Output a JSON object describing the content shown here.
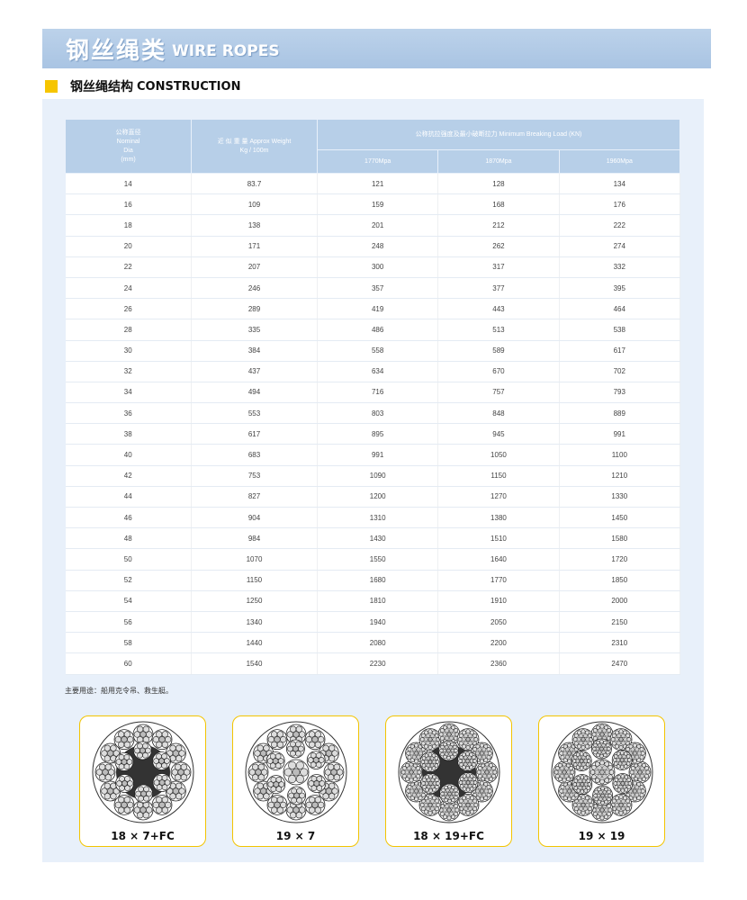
{
  "title": {
    "cn": "钢丝绳类",
    "en": "WIRE ROPES"
  },
  "section": {
    "cn": "钢丝绳结构",
    "en": "CONSTRUCTION"
  },
  "colors": {
    "header": "#b7cfe8",
    "panel": "#e8f0fa",
    "accent": "#f6c500"
  },
  "table": {
    "h_dia": [
      "公称直径",
      "Nominal",
      "Dia",
      "(mm)"
    ],
    "h_weight": [
      "近 似 重 量 Approx Weight",
      "Kg / 100m"
    ],
    "h_load": "公称抗拉强度及最小破断拉力 Minimum Breaking Load (KN)",
    "h_grades": [
      "1770Mpa",
      "1870Mpa",
      "1960Mpa"
    ],
    "rows": [
      [
        "14",
        "83.7",
        "121",
        "128",
        "134"
      ],
      [
        "16",
        "109",
        "159",
        "168",
        "176"
      ],
      [
        "18",
        "138",
        "201",
        "212",
        "222"
      ],
      [
        "20",
        "171",
        "248",
        "262",
        "274"
      ],
      [
        "22",
        "207",
        "300",
        "317",
        "332"
      ],
      [
        "24",
        "246",
        "357",
        "377",
        "395"
      ],
      [
        "26",
        "289",
        "419",
        "443",
        "464"
      ],
      [
        "28",
        "335",
        "486",
        "513",
        "538"
      ],
      [
        "30",
        "384",
        "558",
        "589",
        "617"
      ],
      [
        "32",
        "437",
        "634",
        "670",
        "702"
      ],
      [
        "34",
        "494",
        "716",
        "757",
        "793"
      ],
      [
        "36",
        "553",
        "803",
        "848",
        "889"
      ],
      [
        "38",
        "617",
        "895",
        "945",
        "991"
      ],
      [
        "40",
        "683",
        "991",
        "1050",
        "1100"
      ],
      [
        "42",
        "753",
        "1090",
        "1150",
        "1210"
      ],
      [
        "44",
        "827",
        "1200",
        "1270",
        "1330"
      ],
      [
        "46",
        "904",
        "1310",
        "1380",
        "1450"
      ],
      [
        "48",
        "984",
        "1430",
        "1510",
        "1580"
      ],
      [
        "50",
        "1070",
        "1550",
        "1640",
        "1720"
      ],
      [
        "52",
        "1150",
        "1680",
        "1770",
        "1850"
      ],
      [
        "54",
        "1250",
        "1810",
        "1910",
        "2000"
      ],
      [
        "56",
        "1340",
        "1940",
        "2050",
        "2150"
      ],
      [
        "58",
        "1440",
        "2080",
        "2200",
        "2310"
      ],
      [
        "60",
        "1540",
        "2230",
        "2360",
        "2470"
      ]
    ]
  },
  "note": "主要用途：船用克令吊、救生艇。",
  "constructions": [
    {
      "label": "18 × 7+FC",
      "core": "fiber"
    },
    {
      "label": "19 × 7",
      "core": "steel"
    },
    {
      "label": "18 × 19+FC",
      "core": "fiber"
    },
    {
      "label": "19 × 19",
      "core": "steel"
    }
  ]
}
